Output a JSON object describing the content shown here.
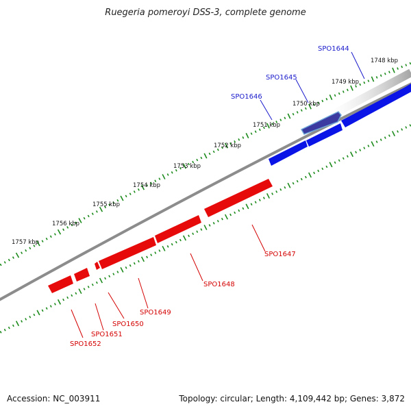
{
  "title": "Ruegeria pomeroyi DSS-3, complete genome",
  "footer": {
    "accession": "Accession: NC_003911",
    "summary": "Topology: circular; Length: 4,109,442 bp; Genes: 3,872"
  },
  "colors": {
    "forward_gene": "#0a14e6",
    "reverse_gene": "#e60a0a",
    "tick": "#1a8a1a",
    "backbone": "#8a8a8a",
    "forward_label": "#1a1acc",
    "reverse_label": "#d40000"
  },
  "kbp_labels": [
    "1748 kbp",
    "1749 kbp",
    "1750 kbp",
    "1751 kbp",
    "1752 kbp",
    "1753 kbp",
    "1754 kbp",
    "1755 kbp",
    "1756 kbp",
    "1757 kbp"
  ],
  "forward_genes": [
    {
      "name": "SPO1644"
    },
    {
      "name": "SPO1645"
    },
    {
      "name": "SPO1646"
    }
  ],
  "reverse_genes": [
    {
      "name": "SPO1647"
    },
    {
      "name": "SPO1648"
    },
    {
      "name": "SPO1649"
    },
    {
      "name": "SPO1650"
    },
    {
      "name": "SPO1651"
    },
    {
      "name": "SPO1652"
    }
  ]
}
